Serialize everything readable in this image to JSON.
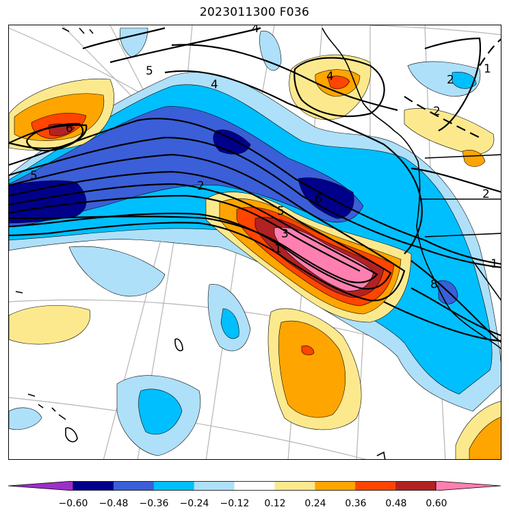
{
  "title": "2023011300 F036",
  "colorbar": {
    "colors": [
      "#9b30c8",
      "#00008b",
      "#3a5fd8",
      "#00bfff",
      "#aee0fa",
      "#ffffff",
      "#fde98d",
      "#ffa500",
      "#ff4500",
      "#b22222",
      "#ff80b0"
    ],
    "ticks": [
      "−0.60",
      "−0.48",
      "−0.36",
      "−0.24",
      "−0.12",
      "0.12",
      "0.24",
      "0.36",
      "0.48",
      "0.60"
    ]
  },
  "contour_labels": [
    "5",
    "4",
    "6",
    "5",
    "2",
    "5",
    "3",
    "1",
    "6",
    "4",
    "2",
    "2",
    "2",
    "1",
    "1",
    "4",
    "8"
  ],
  "style": {
    "contour_color": "#000000",
    "coast_color": "#000000",
    "grid_color": "#b4b4b4"
  }
}
